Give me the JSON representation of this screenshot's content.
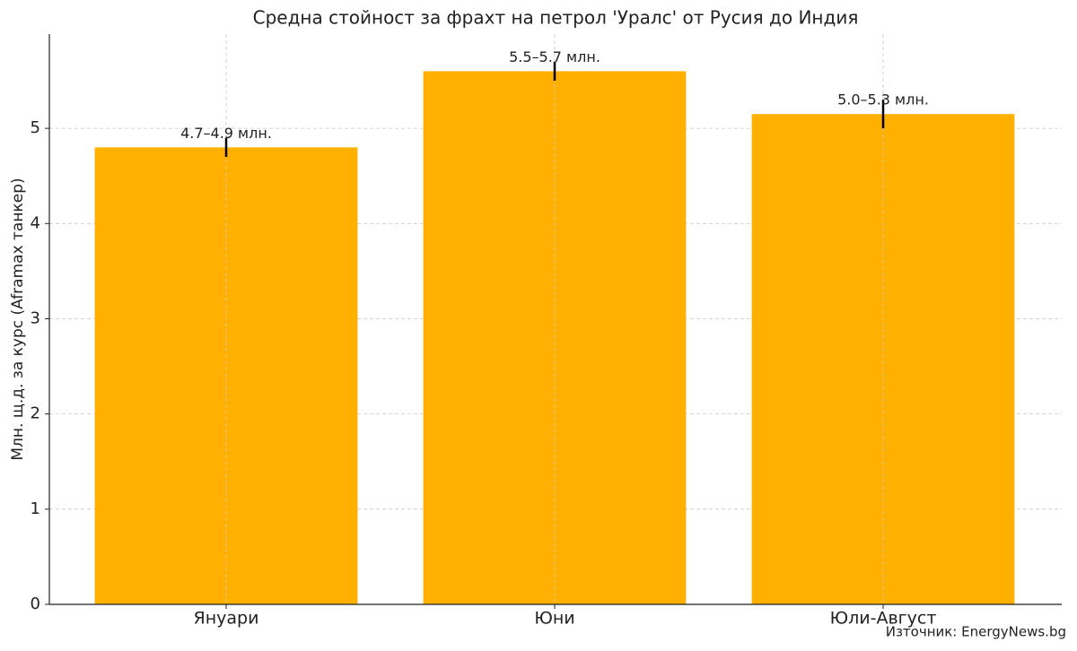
{
  "chart_data": {
    "type": "bar",
    "title": "Средна стойност за фрахт на петрол 'Уралс' от Русия до Индия",
    "y_label": "Млн. щ.д. за курс (Aframax танкер)",
    "source": "Източник: EnergyNews.bg",
    "categories": [
      "Януари",
      "Юни",
      "Юли-Август"
    ],
    "values": [
      4.8,
      5.6,
      5.15
    ],
    "errors": [
      0.1,
      0.1,
      0.15
    ],
    "value_labels": [
      "4.7–4.9 млн.",
      "5.5–5.7 млн.",
      "5.0–5.3 млн."
    ],
    "color": "#ffb000",
    "ylim": [
      0,
      5.99
    ],
    "yticks": [
      0,
      1,
      2,
      3,
      4,
      5
    ],
    "grid": true
  }
}
